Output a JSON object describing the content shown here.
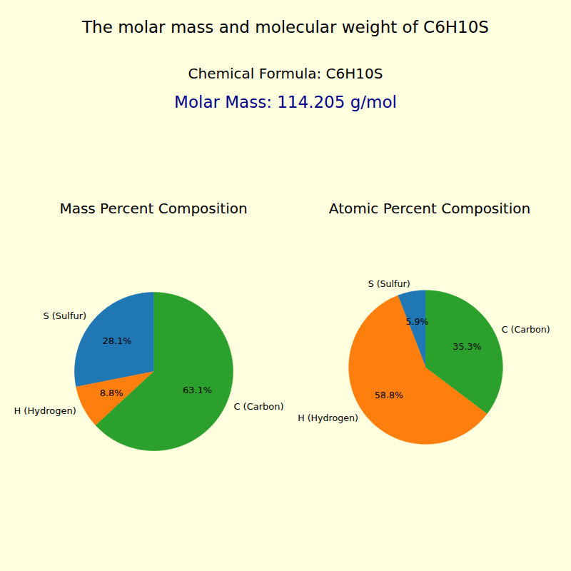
{
  "title": "The molar mass and molecular weight of C6H10S",
  "subtitles": [
    "Chemical Formula: C6H10S",
    "Molar Mass: 114.205 g/mol"
  ],
  "chart_data": [
    {
      "type": "pie",
      "title": "Mass Percent Composition",
      "categories": [
        "S (Sulfur)",
        "H (Hydrogen)",
        "C (Carbon)"
      ],
      "values": [
        28.1,
        8.8,
        63.1
      ],
      "value_labels": [
        "28.1%",
        "8.8%",
        "63.1%"
      ],
      "colors": [
        "#1f77b4",
        "#ff7f0e",
        "#2ca02c"
      ],
      "data_labels": true
    },
    {
      "type": "pie",
      "title": "Atomic Percent Composition",
      "categories": [
        "S (Sulfur)",
        "H (Hydrogen)",
        "C (Carbon)"
      ],
      "values": [
        5.9,
        58.8,
        35.3
      ],
      "value_labels": [
        "5.9%",
        "58.8%",
        "35.3%"
      ],
      "colors": [
        "#1f77b4",
        "#ff7f0e",
        "#2ca02c"
      ],
      "data_labels": true
    }
  ]
}
